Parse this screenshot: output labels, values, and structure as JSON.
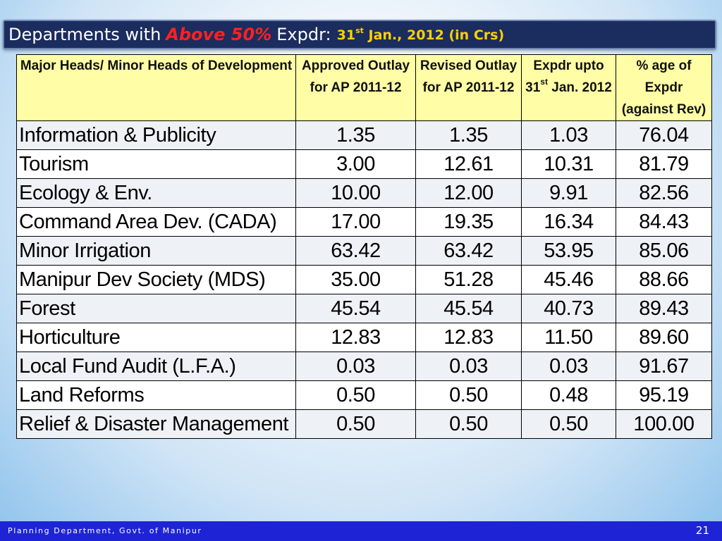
{
  "title": {
    "part1": "Departments with",
    "highlight": "Above 50%",
    "part2": "Expdr:",
    "date_day": "31",
    "date_sup": "st",
    "date_rest": "Jan., 2012 (in Crs)",
    "colors": {
      "bar": "#1b2c5e",
      "highlight": "#ff2020",
      "date": "#ffd000"
    }
  },
  "table": {
    "headers": {
      "head": "Major Heads/ Minor Heads of Development",
      "approved": "Approved Outlay for AP 2011-12",
      "revised": "Revised Outlay for AP 2011-12",
      "expdr_pre": "Expdr upto 31",
      "expdr_sup": "st",
      "expdr_post": "Jan. 2012",
      "pct": "% age of Expdr (against Rev)"
    },
    "rows": [
      {
        "name": "Information & Publicity",
        "approved": "1.35",
        "revised": "1.35",
        "expdr": "1.03",
        "pct": "76.04"
      },
      {
        "name": "Tourism",
        "approved": "3.00",
        "revised": "12.61",
        "expdr": "10.31",
        "pct": "81.79"
      },
      {
        "name": "Ecology & Env.",
        "approved": "10.00",
        "revised": "12.00",
        "expdr": "9.91",
        "pct": "82.56"
      },
      {
        "name": "Command Area Dev. (CADA)",
        "approved": "17.00",
        "revised": "19.35",
        "expdr": "16.34",
        "pct": "84.43"
      },
      {
        "name": "Minor Irrigation",
        "approved": "63.42",
        "revised": "63.42",
        "expdr": "53.95",
        "pct": "85.06"
      },
      {
        "name": "Manipur Dev Society (MDS)",
        "approved": "35.00",
        "revised": "51.28",
        "expdr": "45.46",
        "pct": "88.66"
      },
      {
        "name": "Forest",
        "approved": "45.54",
        "revised": "45.54",
        "expdr": "40.73",
        "pct": "89.43"
      },
      {
        "name": "Horticulture",
        "approved": "12.83",
        "revised": "12.83",
        "expdr": "11.50",
        "pct": "89.60"
      },
      {
        "name": "Local Fund Audit (L.F.A.)",
        "approved": "0.03",
        "revised": "0.03",
        "expdr": "0.03",
        "pct": "91.67"
      },
      {
        "name": "Land Reforms",
        "approved": "0.50",
        "revised": "0.50",
        "expdr": "0.48",
        "pct": "95.19"
      },
      {
        "name": "Relief & Disaster Management",
        "approved": "0.50",
        "revised": "0.50",
        "expdr": "0.50",
        "pct": "100.00"
      }
    ]
  },
  "footer": {
    "org": "Planning Department, Govt. of Manipur",
    "page": "21",
    "color": "#1e24d6"
  }
}
